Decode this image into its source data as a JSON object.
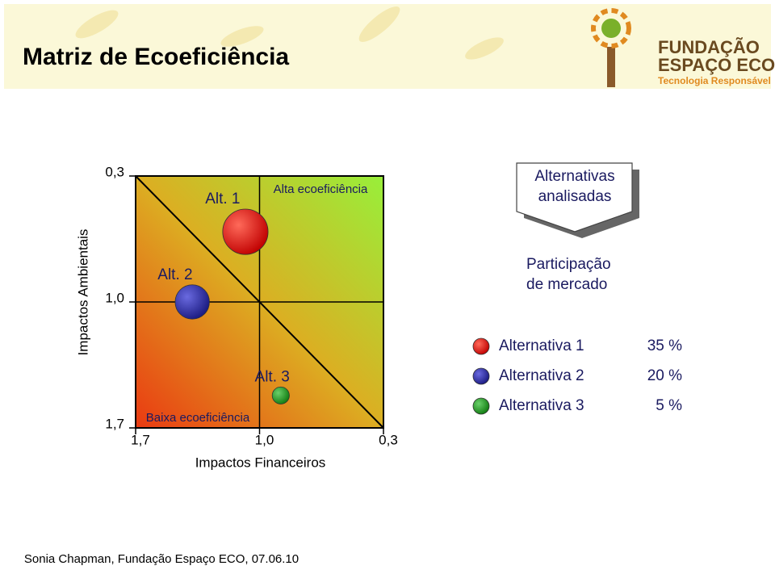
{
  "header": {
    "title": "Matriz de Ecoeficiência"
  },
  "logo": {
    "line1": "FUNDAÇÃO",
    "line2": "ESPAÇO ECO",
    "tagline": "Tecnologia Responsável"
  },
  "chart_data": {
    "type": "bubble",
    "xlabel": "Impactos Financeiros",
    "ylabel": "Impactos Ambientais",
    "xlim": [
      1.7,
      0.3
    ],
    "ylim": [
      1.7,
      0.3
    ],
    "xticks": [
      {
        "value": 1.7,
        "label": "1,7"
      },
      {
        "value": 1.0,
        "label": "1,0"
      },
      {
        "value": 0.3,
        "label": "0,3"
      }
    ],
    "yticks": [
      {
        "value": 1.7,
        "label": "1,7"
      },
      {
        "value": 1.0,
        "label": "1,0"
      },
      {
        "value": 0.3,
        "label": "0,3"
      }
    ],
    "grid": true,
    "annotations": [
      "Alta ecoeficiência",
      "Baixa ecoeficiência"
    ],
    "legend_header": [
      "Alternativas",
      "analisadas"
    ],
    "legend_title": [
      "Participação",
      "de  mercado"
    ],
    "series": [
      {
        "name": "Alternativa 1",
        "label": "Alt. 1",
        "color": "#e01010",
        "x": [
          1.08
        ],
        "values": [
          0.61
        ],
        "size": [
          35
        ],
        "size_labels": [
          "35 %"
        ]
      },
      {
        "name": "Alternativa 2",
        "label": "Alt. 2",
        "color": "#2a2aa0",
        "x": [
          1.38
        ],
        "values": [
          1.0
        ],
        "size": [
          20
        ],
        "size_labels": [
          "20 %"
        ]
      },
      {
        "name": "Alternativa 3",
        "label": "Alt. 3",
        "color": "#2a9a2a",
        "x": [
          0.88
        ],
        "values": [
          1.52
        ],
        "size": [
          5
        ],
        "size_labels": [
          "5 %"
        ]
      }
    ]
  },
  "footer": {
    "text": "Sonia Chapman, Fundação Espaço ECO, 07.06.10"
  }
}
